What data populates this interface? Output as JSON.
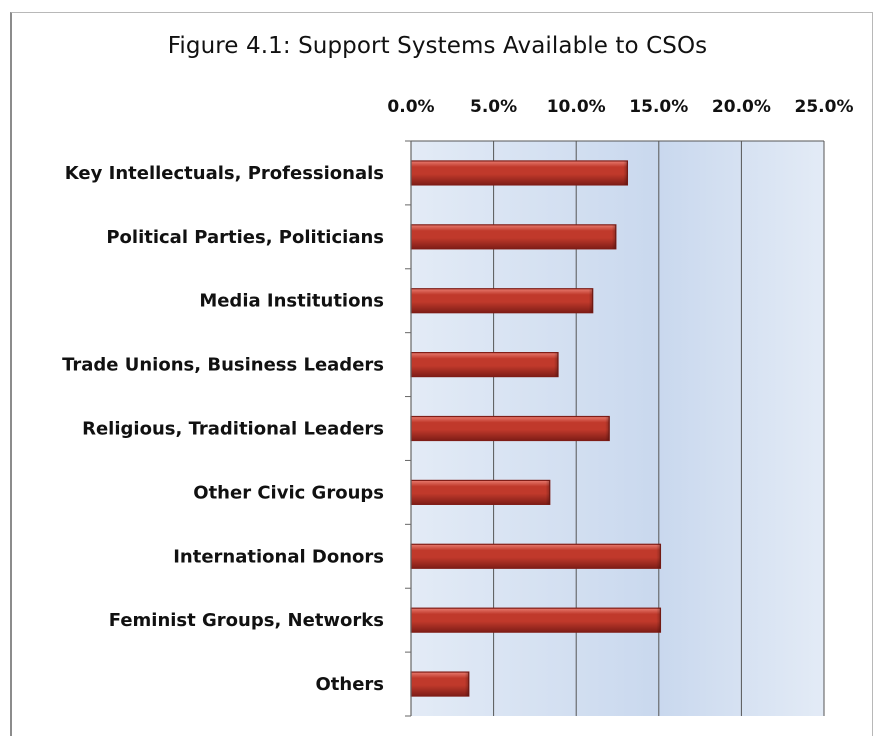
{
  "chart_data": {
    "type": "bar",
    "orientation": "horizontal",
    "title": "Figure 4.1: Support Systems Available to CSOs",
    "categories": [
      "Key Intellectuals, Professionals",
      "Political Parties, Politicians",
      "Media Institutions",
      "Trade Unions, Business Leaders",
      "Religious, Traditional Leaders",
      "Other Civic Groups",
      "International Donors",
      "Feminist Groups, Networks",
      "Others"
    ],
    "values": [
      13.1,
      12.4,
      11.0,
      8.9,
      12.0,
      8.4,
      15.1,
      15.1,
      3.5
    ],
    "xlim": [
      0,
      25
    ],
    "ticks": [
      0,
      5,
      10,
      15,
      20,
      25
    ],
    "tick_labels": [
      "0.0%",
      "5.0%",
      "10.0%",
      "15.0%",
      "20.0%",
      "25.0%"
    ],
    "x_axis_position": "top",
    "grid": true,
    "legend": "none",
    "colors": {
      "bar": "#c0392b",
      "bar_highlight": "#e87b6f",
      "bar_shadow": "#7f1d17",
      "plot_background": "#c9d8ee",
      "plot_background_edge": "#e3ebf6",
      "gridline": "#555555"
    }
  }
}
